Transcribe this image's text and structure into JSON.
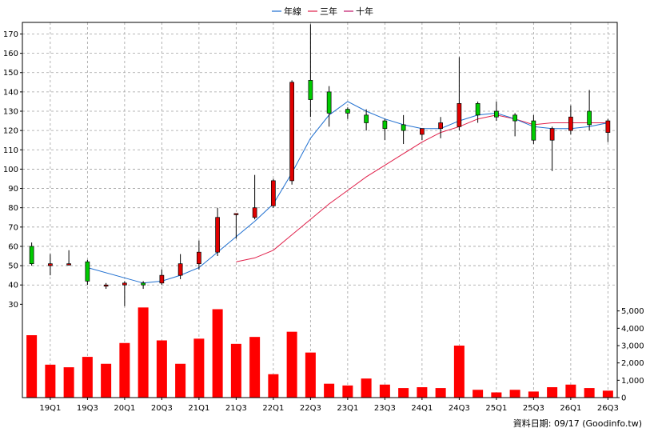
{
  "chart_data": {
    "type": "candlestick",
    "legend": [
      {
        "name": "年線",
        "color": "#1f6fd0"
      },
      {
        "name": "三年",
        "color": "#e0204a"
      },
      {
        "name": "十年",
        "color": "#c0186a"
      }
    ],
    "x_tick_labels": [
      "19Q1",
      "19Q3",
      "20Q1",
      "20Q3",
      "21Q1",
      "21Q3",
      "22Q1",
      "22Q3",
      "23Q1",
      "23Q3",
      "24Q1",
      "24Q3",
      "25Q1",
      "25Q3",
      "26Q1",
      "26Q3"
    ],
    "price_axis": {
      "ticks": [
        30,
        40,
        50,
        60,
        70,
        80,
        90,
        100,
        110,
        120,
        130,
        140,
        150,
        160,
        170
      ],
      "range": [
        26,
        176
      ]
    },
    "volume_axis": {
      "ticks": [
        "0",
        "1,000",
        "2,000",
        "3,000",
        "4,000",
        "5,000"
      ],
      "range": [
        0,
        5400
      ]
    },
    "colors": {
      "up": "#e00000",
      "down": "#00cc00",
      "volume": "#ff0000",
      "grid": "#a0a0a0"
    },
    "candles": [
      {
        "o": 51,
        "h": 62,
        "l": 50,
        "c": 60,
        "up": false
      },
      {
        "o": 50,
        "h": 56,
        "l": 45,
        "c": 51,
        "up": true
      },
      {
        "o": 51,
        "h": 58,
        "l": 50,
        "c": 51,
        "up": true
      },
      {
        "o": 52,
        "h": 53,
        "l": 40,
        "c": 42,
        "up": false
      },
      {
        "o": 40,
        "h": 41,
        "l": 38,
        "c": 40,
        "up": true
      },
      {
        "o": 40,
        "h": 42,
        "l": 29,
        "c": 41,
        "up": true
      },
      {
        "o": 40,
        "h": 42,
        "l": 38,
        "c": 41,
        "up": false
      },
      {
        "o": 41,
        "h": 48,
        "l": 40,
        "c": 45,
        "up": true
      },
      {
        "o": 45,
        "h": 56,
        "l": 43,
        "c": 51,
        "up": true
      },
      {
        "o": 51,
        "h": 63,
        "l": 48,
        "c": 57,
        "up": true
      },
      {
        "o": 57,
        "h": 80,
        "l": 55,
        "c": 75,
        "up": true
      },
      {
        "o": 77,
        "h": 77,
        "l": 64,
        "c": 77,
        "up": true
      },
      {
        "o": 75,
        "h": 97,
        "l": 74,
        "c": 80,
        "up": true
      },
      {
        "o": 81,
        "h": 95,
        "l": 80,
        "c": 94,
        "up": true
      },
      {
        "o": 94,
        "h": 146,
        "l": 92,
        "c": 145,
        "up": true
      },
      {
        "o": 146,
        "h": 175,
        "l": 127,
        "c": 136,
        "up": false
      },
      {
        "o": 140,
        "h": 143,
        "l": 122,
        "c": 129,
        "up": false
      },
      {
        "o": 131,
        "h": 132,
        "l": 126,
        "c": 129,
        "up": false
      },
      {
        "o": 128,
        "h": 131,
        "l": 120,
        "c": 124,
        "up": false
      },
      {
        "o": 125,
        "h": 126,
        "l": 115,
        "c": 121,
        "up": false
      },
      {
        "o": 123,
        "h": 128,
        "l": 113,
        "c": 120,
        "up": false
      },
      {
        "o": 118,
        "h": 121,
        "l": 115,
        "c": 121,
        "up": true
      },
      {
        "o": 121,
        "h": 127,
        "l": 116,
        "c": 124,
        "up": true
      },
      {
        "o": 122,
        "h": 158,
        "l": 120,
        "c": 134,
        "up": true
      },
      {
        "o": 134,
        "h": 135,
        "l": 124,
        "c": 128,
        "up": false
      },
      {
        "o": 130,
        "h": 135,
        "l": 125,
        "c": 127,
        "up": false
      },
      {
        "o": 128,
        "h": 129,
        "l": 117,
        "c": 125,
        "up": false
      },
      {
        "o": 125,
        "h": 128,
        "l": 113,
        "c": 115,
        "up": false
      },
      {
        "o": 115,
        "h": 122,
        "l": 99,
        "c": 121,
        "up": true
      },
      {
        "o": 120,
        "h": 133,
        "l": 118,
        "c": 127,
        "up": true
      },
      {
        "o": 130,
        "h": 141,
        "l": 120,
        "c": 123,
        "up": false
      },
      {
        "o": 119,
        "h": 126,
        "l": 114,
        "c": 125,
        "up": true
      }
    ],
    "volumes": [
      3600,
      1900,
      1750,
      2350,
      1950,
      3150,
      5200,
      3300,
      1950,
      3400,
      5100,
      3100,
      3500,
      1350,
      3800,
      2600,
      800,
      700,
      1100,
      750,
      550,
      600,
      550,
      3000,
      450,
      300,
      450,
      350,
      600,
      750,
      550,
      400
    ],
    "line_1yr": [
      null,
      null,
      null,
      49,
      null,
      null,
      41,
      42,
      45,
      49,
      57,
      65,
      73,
      82,
      98,
      116,
      128,
      135,
      130,
      126,
      123,
      121,
      121,
      125,
      128,
      129,
      126,
      122,
      121,
      121,
      122,
      124
    ],
    "line_3yr": [
      null,
      null,
      null,
      null,
      null,
      null,
      null,
      null,
      null,
      null,
      null,
      52,
      54,
      58,
      66,
      74,
      82,
      89,
      96,
      102,
      108,
      114,
      119,
      122,
      126,
      128,
      126,
      123,
      124,
      124,
      124,
      124
    ],
    "source_label": "資料日期: 09/17  (Goodinfo.tw)"
  }
}
